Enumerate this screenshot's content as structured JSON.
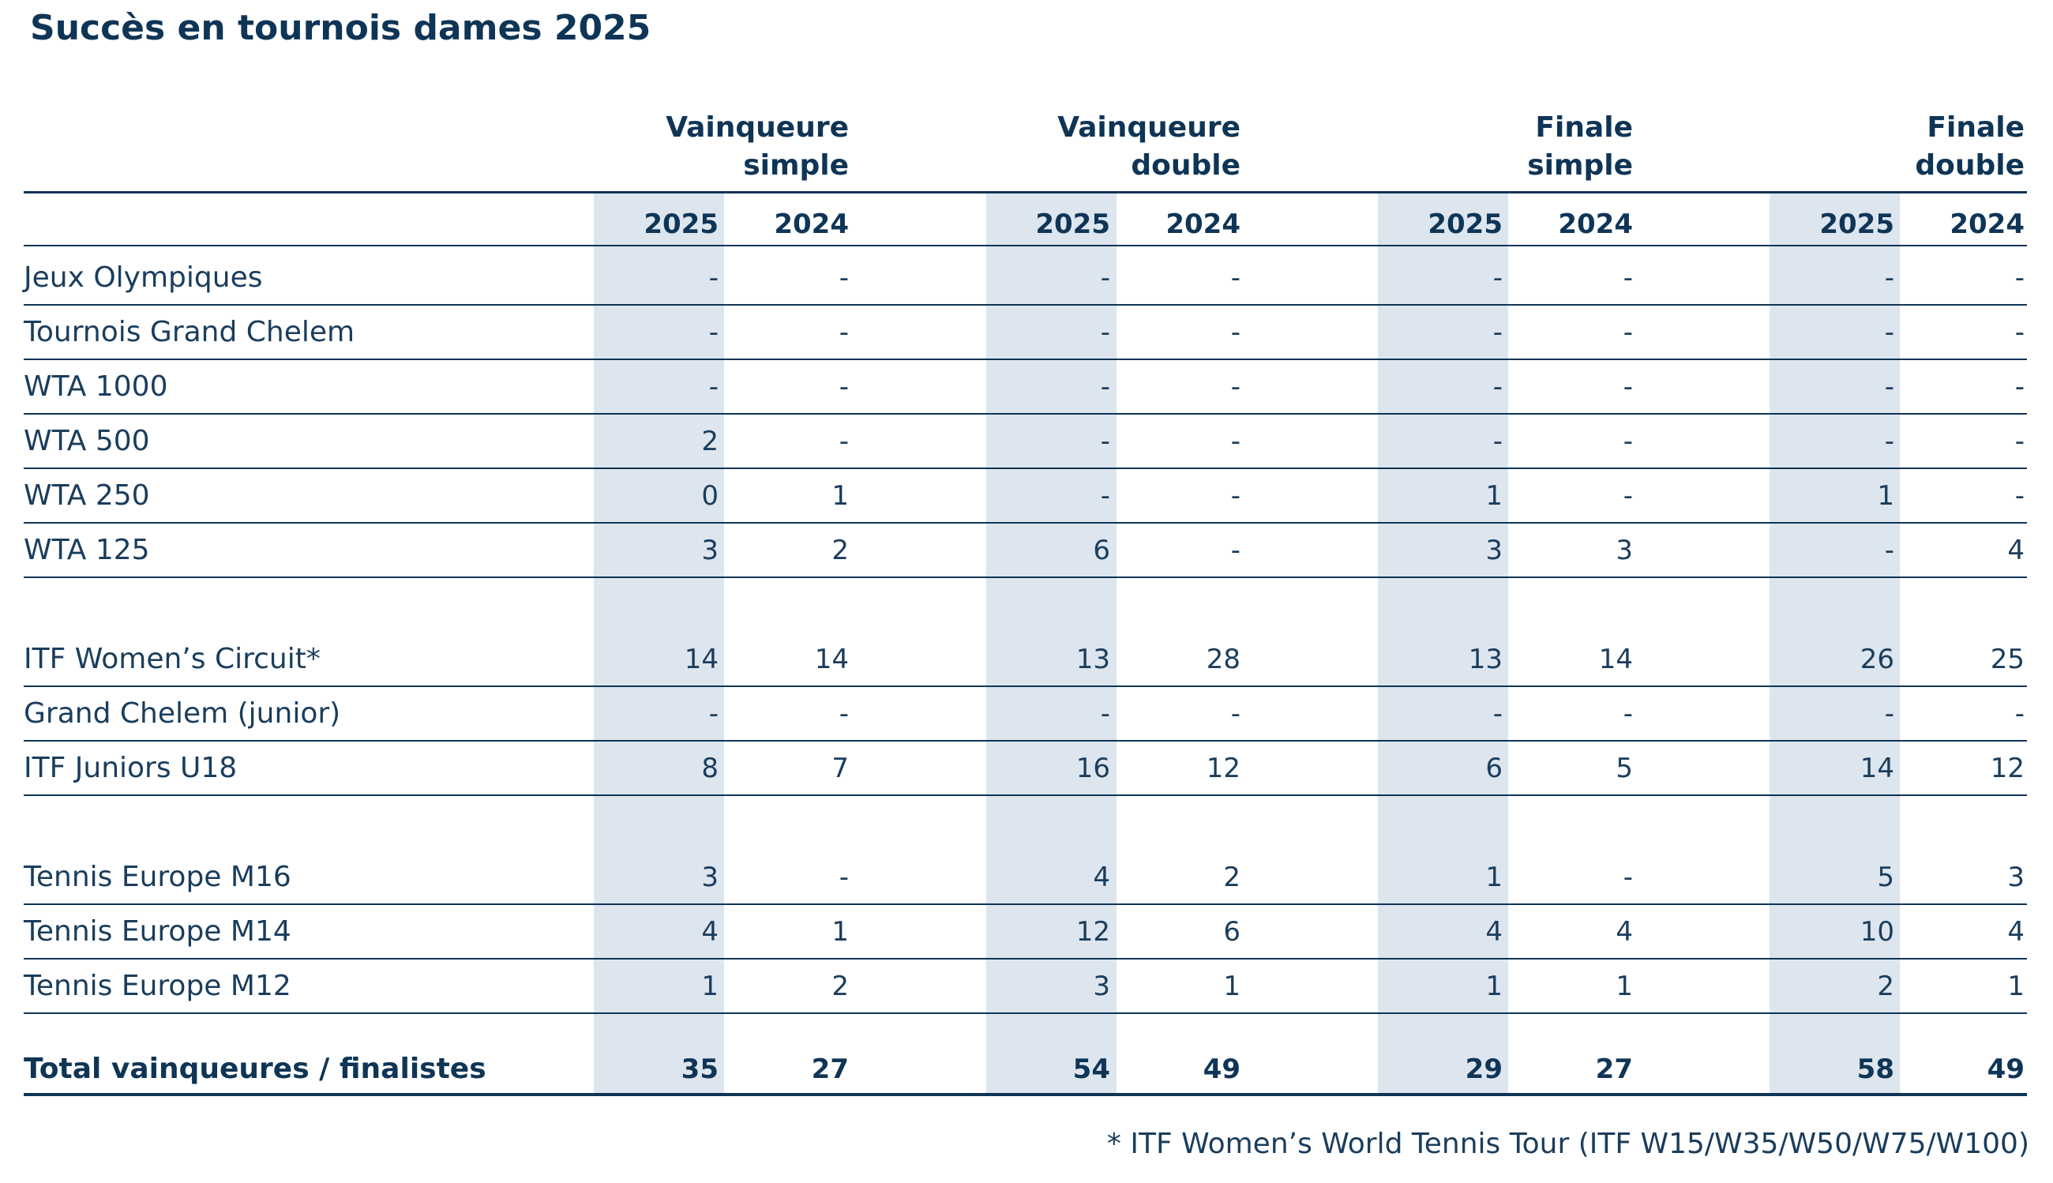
{
  "title": "Succès en tournois dames 2025",
  "groups": [
    {
      "line1": "Vainqueure",
      "line2": "simple"
    },
    {
      "line1": "Vainqueure",
      "line2": "double"
    },
    {
      "line1": "Finale",
      "line2": "simple"
    },
    {
      "line1": "Finale",
      "line2": "double"
    }
  ],
  "years": [
    "2025",
    "2024"
  ],
  "rows": [
    {
      "label": "Jeux Olympiques",
      "values": [
        "-",
        "-",
        "-",
        "-",
        "-",
        "-",
        "-",
        "-"
      ]
    },
    {
      "label": "Tournois Grand Chelem",
      "values": [
        "-",
        "-",
        "-",
        "-",
        "-",
        "-",
        "-",
        "-"
      ]
    },
    {
      "label": "WTA 1000",
      "values": [
        "-",
        "-",
        "-",
        "-",
        "-",
        "-",
        "-",
        "-"
      ]
    },
    {
      "label": "WTA 500",
      "values": [
        "2",
        "-",
        "-",
        "-",
        "-",
        "-",
        "-",
        "-"
      ]
    },
    {
      "label": "WTA 250",
      "values": [
        "0",
        "1",
        "-",
        "-",
        "1",
        "-",
        "1",
        "-"
      ]
    },
    {
      "label": "WTA 125",
      "values": [
        "3",
        "2",
        "6",
        "-",
        "3",
        "3",
        "-",
        "4"
      ]
    },
    {
      "label": "ITF Women’s Circuit*",
      "values": [
        "14",
        "14",
        "13",
        "28",
        "13",
        "14",
        "26",
        "25"
      ]
    },
    {
      "label": "Grand Chelem (junior)",
      "values": [
        "-",
        "-",
        "-",
        "-",
        "-",
        "-",
        "-",
        "-"
      ]
    },
    {
      "label": "ITF Juniors U18",
      "values": [
        "8",
        "7",
        "16",
        "12",
        "6",
        "5",
        "14",
        "12"
      ]
    },
    {
      "label": "Tennis Europe M16",
      "values": [
        "3",
        "-",
        "4",
        "2",
        "1",
        "-",
        "5",
        "3"
      ]
    },
    {
      "label": "Tennis Europe M14",
      "values": [
        "4",
        "1",
        "12",
        "6",
        "4",
        "4",
        "10",
        "4"
      ]
    },
    {
      "label": "Tennis Europe M12",
      "values": [
        "1",
        "2",
        "3",
        "1",
        "1",
        "1",
        "2",
        "1"
      ]
    },
    {
      "label": "Total vainqueures / finalistes",
      "values": [
        "35",
        "27",
        "54",
        "49",
        "29",
        "27",
        "58",
        "49"
      ],
      "total": true
    }
  ],
  "footnote": "* ITF Women’s World Tennis Tour (ITF W15/W35/W50/W75/W100)",
  "colors": {
    "text": "#0f3556",
    "band": "#dde5ee",
    "rule": "#0f3556"
  }
}
